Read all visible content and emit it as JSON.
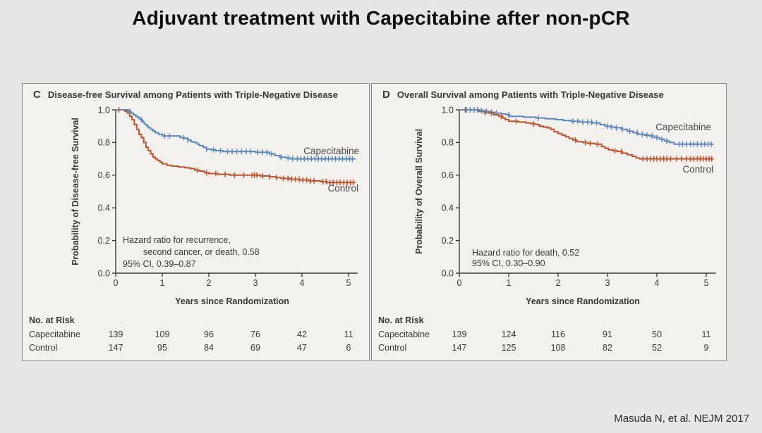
{
  "page": {
    "title": "Adjuvant treatment with Capecitabine after non-pCR",
    "citation": "Masuda N, et al. NEJM 2017",
    "background": "#e7e6e4",
    "panel_background": "#f2f1ee"
  },
  "colors": {
    "capecitabine": "#5b87bd",
    "control": "#c0512b",
    "axis_text": "#3a3935"
  },
  "chart_data": [
    {
      "id": "dfs",
      "panel_letter": "C",
      "title": "Disease-free Survival among Patients with Triple-Negative Disease",
      "type": "line",
      "step": true,
      "xlabel": "Years since Randomization",
      "ylabel": "Probability of Disease-free Survival",
      "xlim": [
        0,
        5.15
      ],
      "ylim": [
        0.0,
        1.0
      ],
      "xticks": [
        0,
        1,
        2,
        3,
        4,
        5
      ],
      "ytick_labels": [
        "0.0",
        "0.2",
        "0.4",
        "0.6",
        "0.8",
        "1.0"
      ],
      "grid": false,
      "annotation": [
        "Hazard ratio for recurrence,",
        "second cancer, or death, 0.58",
        "95% CI, 0.39–0.87"
      ],
      "series": [
        {
          "name": "Capecitabine",
          "color": "capecitabine",
          "points": [
            [
              0,
              1.0
            ],
            [
              0.27,
              0.99
            ],
            [
              0.33,
              0.98
            ],
            [
              0.38,
              0.97
            ],
            [
              0.43,
              0.96
            ],
            [
              0.48,
              0.95
            ],
            [
              0.52,
              0.94
            ],
            [
              0.57,
              0.93
            ],
            [
              0.6,
              0.92
            ],
            [
              0.63,
              0.91
            ],
            [
              0.67,
              0.9
            ],
            [
              0.7,
              0.89
            ],
            [
              0.75,
              0.88
            ],
            [
              0.8,
              0.87
            ],
            [
              0.85,
              0.86
            ],
            [
              0.92,
              0.85
            ],
            [
              1.0,
              0.84
            ],
            [
              1.38,
              0.83
            ],
            [
              1.48,
              0.825
            ],
            [
              1.55,
              0.815
            ],
            [
              1.62,
              0.805
            ],
            [
              1.68,
              0.8
            ],
            [
              1.75,
              0.79
            ],
            [
              1.8,
              0.78
            ],
            [
              1.88,
              0.77
            ],
            [
              1.95,
              0.76
            ],
            [
              2.05,
              0.755
            ],
            [
              2.15,
              0.75
            ],
            [
              2.3,
              0.745
            ],
            [
              3.0,
              0.74
            ],
            [
              3.3,
              0.73
            ],
            [
              3.42,
              0.72
            ],
            [
              3.52,
              0.71
            ],
            [
              3.65,
              0.705
            ],
            [
              3.75,
              0.7
            ],
            [
              5.15,
              0.7
            ]
          ],
          "censors": [
            0.3,
            0.55,
            1.05,
            1.15,
            1.45,
            1.55,
            1.95,
            2.1,
            2.25,
            2.4,
            2.5,
            2.6,
            2.7,
            2.8,
            2.9,
            3.05,
            3.15,
            3.25,
            3.35,
            3.55,
            3.7,
            3.8,
            3.9,
            3.97,
            4.05,
            4.12,
            4.2,
            4.28,
            4.35,
            4.42,
            4.5,
            4.57,
            4.65,
            4.72,
            4.8,
            4.87,
            4.95,
            5.02,
            5.08
          ]
        },
        {
          "name": "Control",
          "color": "control",
          "points": [
            [
              0,
              1.0
            ],
            [
              0.2,
              0.99
            ],
            [
              0.25,
              0.98
            ],
            [
              0.3,
              0.96
            ],
            [
              0.35,
              0.94
            ],
            [
              0.4,
              0.91
            ],
            [
              0.45,
              0.88
            ],
            [
              0.5,
              0.85
            ],
            [
              0.55,
              0.83
            ],
            [
              0.6,
              0.8
            ],
            [
              0.65,
              0.77
            ],
            [
              0.7,
              0.75
            ],
            [
              0.75,
              0.73
            ],
            [
              0.8,
              0.71
            ],
            [
              0.85,
              0.7
            ],
            [
              0.9,
              0.69
            ],
            [
              0.95,
              0.68
            ],
            [
              1.0,
              0.67
            ],
            [
              1.1,
              0.66
            ],
            [
              1.2,
              0.655
            ],
            [
              1.35,
              0.65
            ],
            [
              1.5,
              0.645
            ],
            [
              1.6,
              0.64
            ],
            [
              1.7,
              0.63
            ],
            [
              1.8,
              0.625
            ],
            [
              1.9,
              0.615
            ],
            [
              2.0,
              0.61
            ],
            [
              2.2,
              0.605
            ],
            [
              2.45,
              0.6
            ],
            [
              3.1,
              0.595
            ],
            [
              3.3,
              0.59
            ],
            [
              3.45,
              0.585
            ],
            [
              3.55,
              0.58
            ],
            [
              3.75,
              0.575
            ],
            [
              3.95,
              0.57
            ],
            [
              4.15,
              0.565
            ],
            [
              4.4,
              0.56
            ],
            [
              4.55,
              0.555
            ],
            [
              5.15,
              0.555
            ]
          ],
          "censors": [
            0.07,
            1.75,
            1.95,
            2.15,
            2.35,
            2.55,
            2.75,
            2.93,
            2.98,
            3.03,
            3.15,
            3.3,
            3.45,
            3.6,
            3.7,
            3.78,
            3.86,
            3.94,
            4.02,
            4.1,
            4.18,
            4.26,
            4.45,
            4.52,
            4.6,
            4.67,
            4.75,
            4.82,
            4.9,
            4.97,
            5.04,
            5.1
          ]
        }
      ],
      "risk_table": {
        "heading": "No. at Risk",
        "rows": [
          {
            "label": "Capecitabine",
            "values": [
              139,
              109,
              96,
              76,
              42,
              11
            ]
          },
          {
            "label": "Control",
            "values": [
              147,
              95,
              84,
              69,
              47,
              6
            ]
          }
        ]
      }
    },
    {
      "id": "os",
      "panel_letter": "D",
      "title": "Overall Survival among Patients with Triple-Negative Disease",
      "type": "line",
      "step": true,
      "xlabel": "Years since Randomization",
      "ylabel": "Probability of Overall Survival",
      "xlim": [
        0,
        5.15
      ],
      "ylim": [
        0.0,
        1.0
      ],
      "xticks": [
        0,
        1,
        2,
        3,
        4,
        5
      ],
      "ytick_labels": [
        "0.0",
        "0.2",
        "0.4",
        "0.6",
        "0.8",
        "1.0"
      ],
      "grid": false,
      "annotation": [
        "Hazard ratio for death, 0.52",
        "95% CI, 0.30–0.90"
      ],
      "series": [
        {
          "name": "Capecitabine",
          "color": "capecitabine",
          "points": [
            [
              0,
              1.0
            ],
            [
              0.42,
              0.995
            ],
            [
              0.5,
              0.99
            ],
            [
              0.62,
              0.985
            ],
            [
              0.72,
              0.98
            ],
            [
              0.85,
              0.975
            ],
            [
              0.95,
              0.97
            ],
            [
              1.02,
              0.96
            ],
            [
              1.3,
              0.955
            ],
            [
              1.55,
              0.95
            ],
            [
              1.75,
              0.945
            ],
            [
              1.95,
              0.94
            ],
            [
              2.1,
              0.935
            ],
            [
              2.25,
              0.93
            ],
            [
              2.45,
              0.925
            ],
            [
              2.7,
              0.92
            ],
            [
              2.85,
              0.91
            ],
            [
              2.95,
              0.9
            ],
            [
              3.05,
              0.895
            ],
            [
              3.15,
              0.89
            ],
            [
              3.28,
              0.88
            ],
            [
              3.4,
              0.87
            ],
            [
              3.52,
              0.86
            ],
            [
              3.62,
              0.85
            ],
            [
              3.75,
              0.845
            ],
            [
              3.85,
              0.84
            ],
            [
              3.95,
              0.83
            ],
            [
              4.05,
              0.82
            ],
            [
              4.15,
              0.81
            ],
            [
              4.25,
              0.8
            ],
            [
              4.35,
              0.79
            ],
            [
              5.15,
              0.79
            ]
          ],
          "censors": [
            0.15,
            0.22,
            0.3,
            0.37,
            0.45,
            0.55,
            0.65,
            0.75,
            1.0,
            1.6,
            2.3,
            2.4,
            2.5,
            2.6,
            2.68,
            2.78,
            3.0,
            3.08,
            3.18,
            3.3,
            3.45,
            3.6,
            3.7,
            3.8,
            3.9,
            4.0,
            4.1,
            4.2,
            4.45,
            4.52,
            4.6,
            4.68,
            4.75,
            4.82,
            4.9,
            4.97,
            5.04,
            5.1
          ]
        },
        {
          "name": "Control",
          "color": "control",
          "points": [
            [
              0,
              1.0
            ],
            [
              0.38,
              0.99
            ],
            [
              0.5,
              0.985
            ],
            [
              0.6,
              0.98
            ],
            [
              0.7,
              0.97
            ],
            [
              0.8,
              0.96
            ],
            [
              0.88,
              0.95
            ],
            [
              0.93,
              0.94
            ],
            [
              1.0,
              0.93
            ],
            [
              1.2,
              0.925
            ],
            [
              1.35,
              0.92
            ],
            [
              1.45,
              0.915
            ],
            [
              1.55,
              0.91
            ],
            [
              1.62,
              0.9
            ],
            [
              1.7,
              0.895
            ],
            [
              1.78,
              0.89
            ],
            [
              1.85,
              0.88
            ],
            [
              1.92,
              0.865
            ],
            [
              2.0,
              0.855
            ],
            [
              2.08,
              0.845
            ],
            [
              2.15,
              0.835
            ],
            [
              2.22,
              0.825
            ],
            [
              2.3,
              0.815
            ],
            [
              2.38,
              0.805
            ],
            [
              2.5,
              0.8
            ],
            [
              2.6,
              0.795
            ],
            [
              2.75,
              0.79
            ],
            [
              2.88,
              0.775
            ],
            [
              2.95,
              0.765
            ],
            [
              3.02,
              0.755
            ],
            [
              3.1,
              0.75
            ],
            [
              3.2,
              0.745
            ],
            [
              3.3,
              0.735
            ],
            [
              3.4,
              0.725
            ],
            [
              3.5,
              0.715
            ],
            [
              3.58,
              0.705
            ],
            [
              3.65,
              0.7
            ],
            [
              5.15,
              0.7
            ]
          ],
          "censors": [
            0.12,
            0.52,
            0.65,
            0.85,
            1.15,
            1.5,
            2.35,
            2.55,
            2.65,
            2.8,
            3.15,
            3.28,
            3.72,
            3.8,
            3.87,
            3.94,
            4.0,
            4.07,
            4.14,
            4.2,
            4.28,
            4.4,
            4.5,
            4.6,
            4.68,
            4.75,
            4.82,
            4.88,
            4.94,
            5.0,
            5.06,
            5.11
          ]
        }
      ],
      "risk_table": {
        "heading": "No. at Risk",
        "rows": [
          {
            "label": "Capecitabine",
            "values": [
              139,
              124,
              116,
              91,
              50,
              11
            ]
          },
          {
            "label": "Control",
            "values": [
              147,
              125,
              108,
              82,
              52,
              9
            ]
          }
        ]
      }
    }
  ]
}
